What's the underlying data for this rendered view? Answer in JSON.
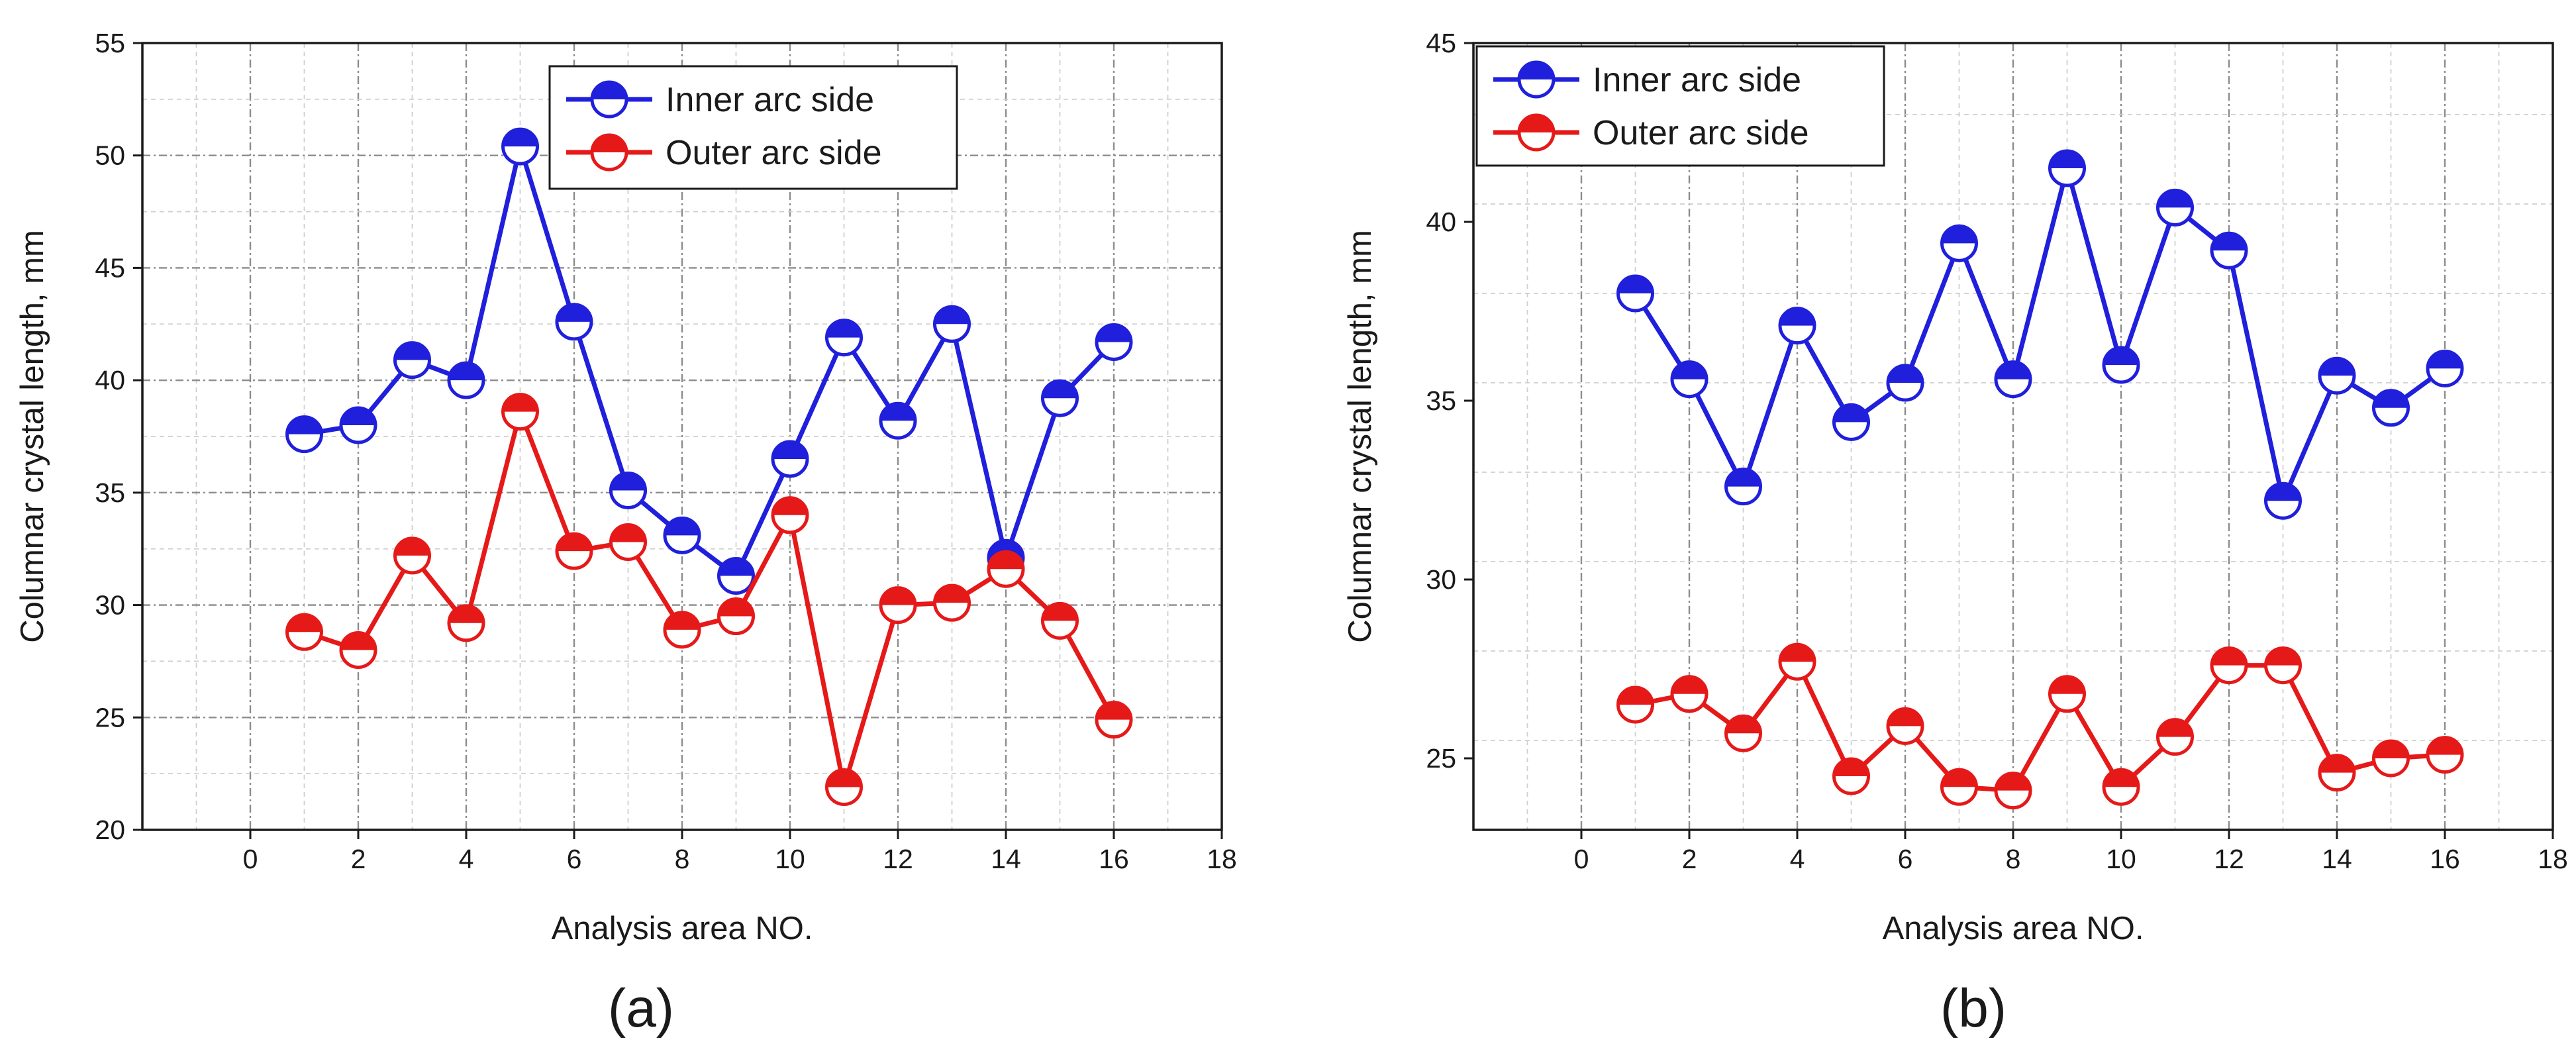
{
  "chart_data": [
    {
      "type": "line",
      "panel_label": "(a)",
      "xlabel": "Analysis area NO.",
      "ylabel": "Columnar crystal length, mm",
      "xlim": [
        -2,
        18
      ],
      "ylim": [
        20,
        55
      ],
      "xticks": [
        0,
        2,
        4,
        6,
        8,
        10,
        12,
        14,
        16,
        18
      ],
      "yticks": [
        20,
        25,
        30,
        35,
        40,
        45,
        50,
        55
      ],
      "x_minor_grid_step": 1,
      "y_minor_grid_step": 2.5,
      "grid": true,
      "legend_position": "top-center",
      "x": [
        1,
        2,
        3,
        4,
        5,
        6,
        7,
        8,
        9,
        10,
        11,
        12,
        13,
        14,
        15,
        16
      ],
      "series": [
        {
          "name": "Inner arc side",
          "color": "#1f1fdc",
          "marker": "half-filled-circle",
          "values": [
            37.6,
            38.0,
            40.9,
            40.0,
            50.4,
            42.6,
            35.1,
            33.1,
            31.3,
            36.5,
            41.9,
            38.2,
            42.5,
            32.1,
            39.2,
            41.7
          ]
        },
        {
          "name": "Outer arc side",
          "color": "#e61919",
          "marker": "half-filled-circle",
          "values": [
            28.8,
            28.0,
            32.2,
            29.2,
            38.6,
            32.4,
            32.8,
            28.9,
            29.5,
            34.0,
            21.9,
            30.0,
            30.1,
            31.6,
            29.3,
            24.9
          ]
        }
      ]
    },
    {
      "type": "line",
      "panel_label": "(b)",
      "xlabel": "Analysis area NO.",
      "ylabel": "Columnar crystal length, mm",
      "xlim": [
        -2,
        18
      ],
      "ylim": [
        23,
        45
      ],
      "xticks": [
        0,
        2,
        4,
        6,
        8,
        10,
        12,
        14,
        16,
        18
      ],
      "yticks": [
        25,
        30,
        35,
        40,
        45
      ],
      "x_minor_grid_step": 1,
      "y_minor_grid_step": 2.5,
      "grid": true,
      "legend_position": "top-left",
      "x": [
        1,
        2,
        3,
        4,
        5,
        6,
        7,
        8,
        9,
        10,
        11,
        12,
        13,
        14,
        15,
        16
      ],
      "series": [
        {
          "name": "Inner arc side",
          "color": "#1f1fdc",
          "marker": "half-filled-circle",
          "values": [
            38.0,
            35.6,
            32.6,
            37.1,
            34.4,
            35.5,
            39.4,
            35.6,
            41.5,
            36.0,
            40.4,
            39.2,
            32.2,
            35.7,
            34.8,
            35.9
          ]
        },
        {
          "name": "Outer arc side",
          "color": "#e61919",
          "marker": "half-filled-circle",
          "values": [
            26.5,
            26.8,
            25.7,
            27.7,
            24.5,
            25.9,
            24.2,
            24.1,
            26.8,
            24.2,
            25.6,
            27.6,
            27.6,
            24.6,
            25.0,
            25.1
          ]
        }
      ]
    }
  ]
}
